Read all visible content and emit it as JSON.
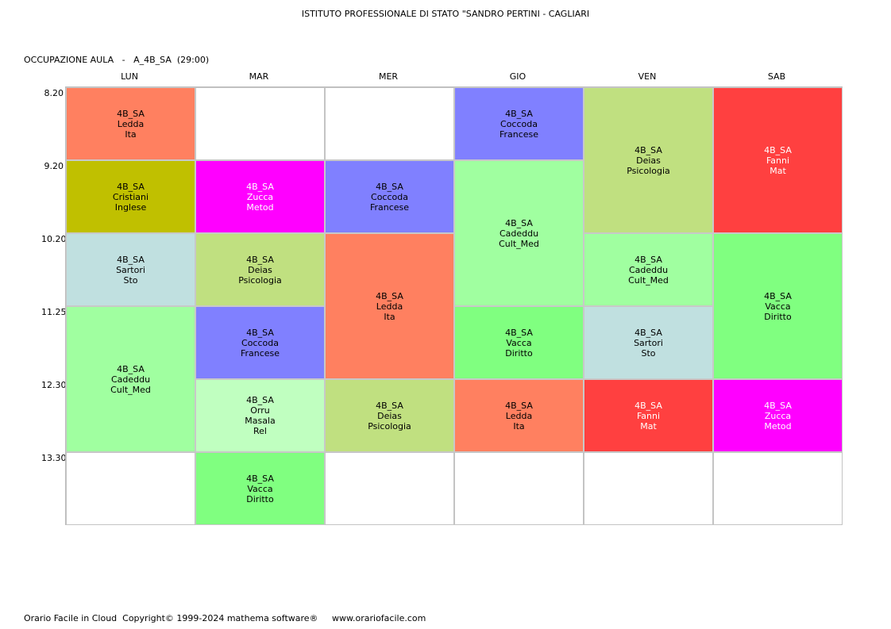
{
  "header": {
    "title": "ISTITUTO PROFESSIONALE DI STATO \"SANDRO PERTINI - CAGLIARI",
    "subtitle": "OCCUPAZIONE AULA   -   A_4B_SA  (29:00)"
  },
  "days": [
    "LUN",
    "MAR",
    "MER",
    "GIO",
    "VEN",
    "SAB"
  ],
  "times": [
    "8.20",
    "9.20",
    "10.20",
    "11.25",
    "12.30",
    "13.30"
  ],
  "colors": {
    "salmon": "#ff8060",
    "olive": "#c0c000",
    "light-blue-grey": "#c0e0e0",
    "light-green": "#a0ffa0",
    "magenta": "#ff00ff",
    "khaki-green": "#c0e080",
    "periwinkle": "#8080ff",
    "pale-green": "#c0ffc0",
    "green": "#80ff80",
    "red": "#ff4040"
  },
  "lessons": [
    {
      "day": 0,
      "slot": 0,
      "span": 1,
      "lines": [
        "4B_SA",
        "Ledda",
        "Ita"
      ],
      "bg": "#ff8060",
      "fg": "#000000"
    },
    {
      "day": 0,
      "slot": 1,
      "span": 1,
      "lines": [
        "4B_SA",
        "Cristiani",
        "Inglese"
      ],
      "bg": "#c0c000",
      "fg": "#000000"
    },
    {
      "day": 0,
      "slot": 2,
      "span": 1,
      "lines": [
        "4B_SA",
        "Sartori",
        "Sto"
      ],
      "bg": "#c0e0e0",
      "fg": "#000000"
    },
    {
      "day": 0,
      "slot": 3,
      "span": 2,
      "lines": [
        "4B_SA",
        "Cadeddu",
        "Cult_Med"
      ],
      "bg": "#a0ffa0",
      "fg": "#000000"
    },
    {
      "day": 1,
      "slot": 1,
      "span": 1,
      "lines": [
        "4B_SA",
        "Zucca",
        "Metod"
      ],
      "bg": "#ff00ff",
      "fg": "#ffffff"
    },
    {
      "day": 1,
      "slot": 2,
      "span": 1,
      "lines": [
        "4B_SA",
        "Deias",
        "Psicologia"
      ],
      "bg": "#c0e080",
      "fg": "#000000"
    },
    {
      "day": 1,
      "slot": 3,
      "span": 1,
      "lines": [
        "4B_SA",
        "Coccoda",
        "Francese"
      ],
      "bg": "#8080ff",
      "fg": "#000000"
    },
    {
      "day": 1,
      "slot": 4,
      "span": 1,
      "lines": [
        "4B_SA",
        "Orru",
        "Masala",
        "Rel"
      ],
      "bg": "#c0ffc0",
      "fg": "#000000"
    },
    {
      "day": 1,
      "slot": 5,
      "span": 1,
      "lines": [
        "4B_SA",
        "Vacca",
        "Diritto"
      ],
      "bg": "#80ff80",
      "fg": "#000000"
    },
    {
      "day": 2,
      "slot": 1,
      "span": 1,
      "lines": [
        "4B_SA",
        "Coccoda",
        "Francese"
      ],
      "bg": "#8080ff",
      "fg": "#000000"
    },
    {
      "day": 2,
      "slot": 2,
      "span": 2,
      "lines": [
        "4B_SA",
        "Ledda",
        "Ita"
      ],
      "bg": "#ff8060",
      "fg": "#000000"
    },
    {
      "day": 2,
      "slot": 4,
      "span": 1,
      "lines": [
        "4B_SA",
        "Deias",
        "Psicologia"
      ],
      "bg": "#c0e080",
      "fg": "#000000"
    },
    {
      "day": 3,
      "slot": 0,
      "span": 1,
      "lines": [
        "4B_SA",
        "Coccoda",
        "Francese"
      ],
      "bg": "#8080ff",
      "fg": "#000000"
    },
    {
      "day": 3,
      "slot": 1,
      "span": 2,
      "lines": [
        "4B_SA",
        "Cadeddu",
        "Cult_Med"
      ],
      "bg": "#a0ffa0",
      "fg": "#000000"
    },
    {
      "day": 3,
      "slot": 3,
      "span": 1,
      "lines": [
        "4B_SA",
        "Vacca",
        "Diritto"
      ],
      "bg": "#80ff80",
      "fg": "#000000"
    },
    {
      "day": 3,
      "slot": 4,
      "span": 1,
      "lines": [
        "4B_SA",
        "Ledda",
        "Ita"
      ],
      "bg": "#ff8060",
      "fg": "#000000"
    },
    {
      "day": 4,
      "slot": 0,
      "span": 2,
      "lines": [
        "4B_SA",
        "Deias",
        "Psicologia"
      ],
      "bg": "#c0e080",
      "fg": "#000000"
    },
    {
      "day": 4,
      "slot": 2,
      "span": 1,
      "lines": [
        "4B_SA",
        "Cadeddu",
        "Cult_Med"
      ],
      "bg": "#a0ffa0",
      "fg": "#000000"
    },
    {
      "day": 4,
      "slot": 3,
      "span": 1,
      "lines": [
        "4B_SA",
        "Sartori",
        "Sto"
      ],
      "bg": "#c0e0e0",
      "fg": "#000000"
    },
    {
      "day": 4,
      "slot": 4,
      "span": 1,
      "lines": [
        "4B_SA",
        "Fanni",
        "Mat"
      ],
      "bg": "#ff4040",
      "fg": "#ffffff"
    },
    {
      "day": 5,
      "slot": 0,
      "span": 2,
      "lines": [
        "4B_SA",
        "Fanni",
        "Mat"
      ],
      "bg": "#ff4040",
      "fg": "#ffffff"
    },
    {
      "day": 5,
      "slot": 2,
      "span": 2,
      "lines": [
        "4B_SA",
        "Vacca",
        "Diritto"
      ],
      "bg": "#80ff80",
      "fg": "#000000"
    },
    {
      "day": 5,
      "slot": 4,
      "span": 1,
      "lines": [
        "4B_SA",
        "Zucca",
        "Metod"
      ],
      "bg": "#ff00ff",
      "fg": "#ffffff"
    }
  ],
  "footer": {
    "text": "Orario Facile in Cloud  Copyright© 1999-2024 mathema software®     www.orariofacile.com"
  }
}
